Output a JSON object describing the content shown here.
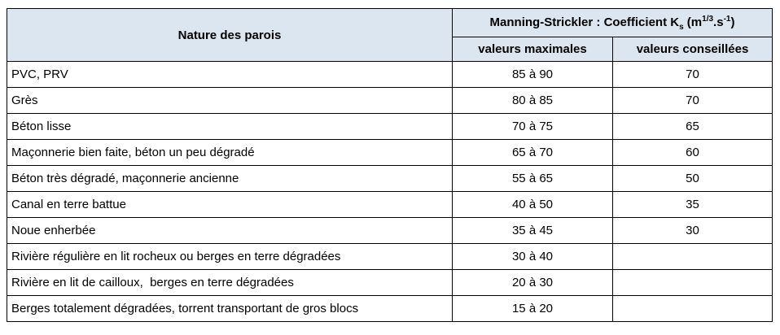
{
  "header": {
    "nature": "Nature des parois",
    "coef_prefix": "Manning-Strickler : Coefficient K",
    "coef_sub": "s",
    "coef_unit_open": " (m",
    "coef_sup1": "1/3",
    "coef_unit_mid": ".s",
    "coef_sup2": "-1",
    "coef_unit_close": ")",
    "max": "valeurs maximales",
    "conseil": "valeurs conseillées"
  },
  "rows": [
    {
      "nature": "PVC, PRV",
      "max": "85 à 90",
      "conseil": "70"
    },
    {
      "nature": "Grès",
      "max": "80 à 85",
      "conseil": "70"
    },
    {
      "nature": "Béton lisse",
      "max": "70 à 75",
      "conseil": "65"
    },
    {
      "nature": "Maçonnerie bien faite, béton un peu dégradé",
      "max": "65 à 70",
      "conseil": "60"
    },
    {
      "nature": "Béton très dégradé, maçonnerie ancienne",
      "max": "55 à 65",
      "conseil": "50"
    },
    {
      "nature": "Canal en terre battue",
      "max": "40 à 50",
      "conseil": "35"
    },
    {
      "nature": "Noue enherbée",
      "max": "35 à 45",
      "conseil": "30"
    },
    {
      "nature": "Rivière régulière en lit rocheux ou berges en terre dégradées",
      "max": "30 à 40",
      "conseil": ""
    },
    {
      "nature": "Rivière en lit de cailloux,  berges en terre dégradées",
      "max": "20 à 30",
      "conseil": ""
    },
    {
      "nature": "Berges totalement dégradées, torrent transportant de gros blocs",
      "max": "15 à 20",
      "conseil": ""
    }
  ]
}
